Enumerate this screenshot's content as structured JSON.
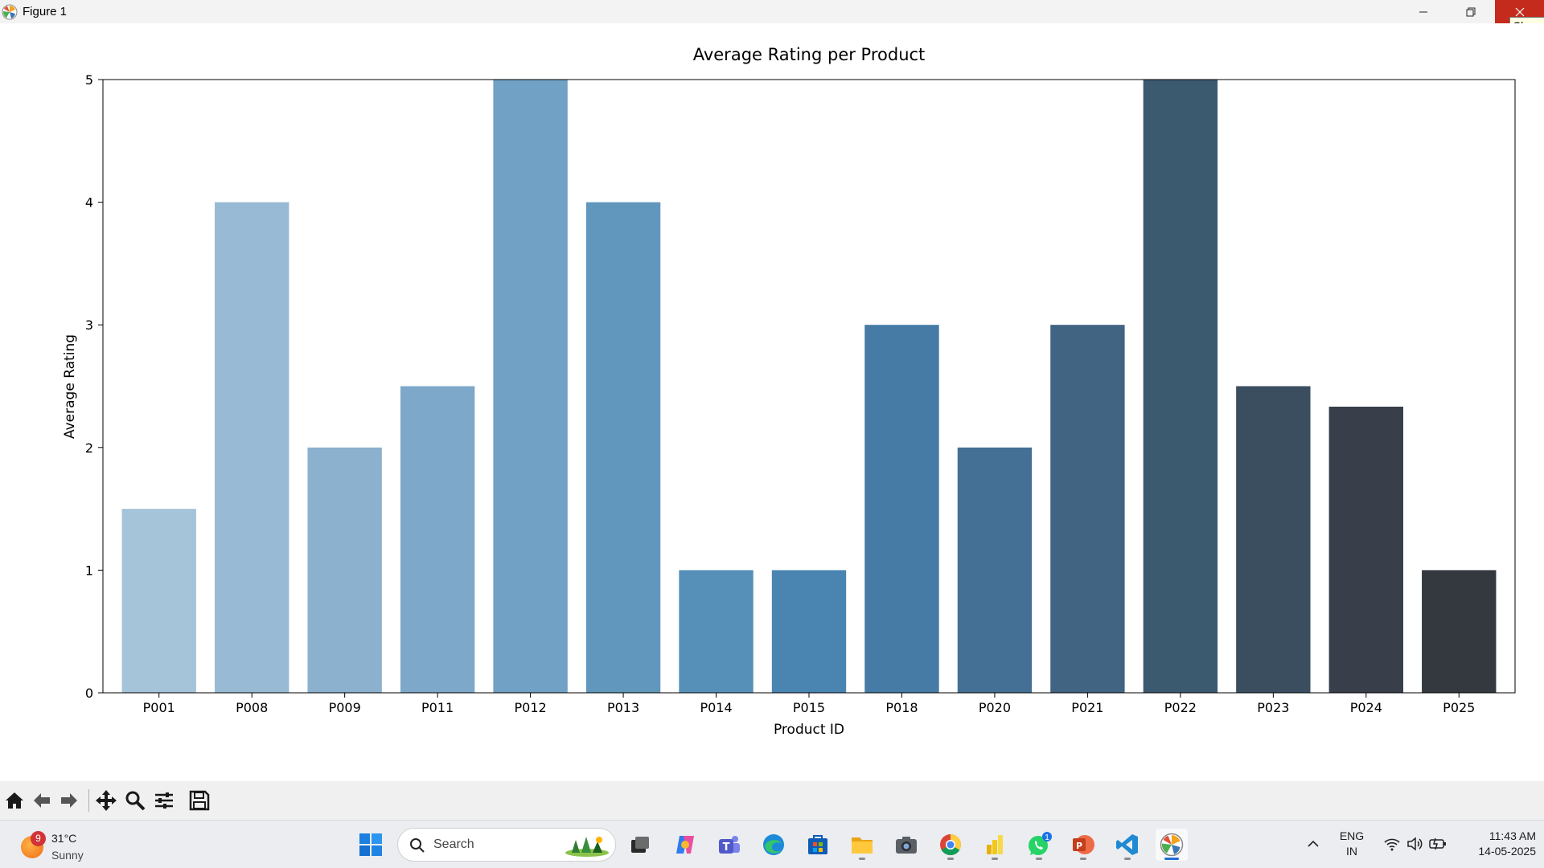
{
  "window": {
    "title": "Figure 1",
    "close_tooltip": "Close"
  },
  "chart_data": {
    "type": "bar",
    "title": "Average Rating per Product",
    "xlabel": "Product ID",
    "ylabel": "Average Rating",
    "categories": [
      "P001",
      "P008",
      "P009",
      "P011",
      "P012",
      "P013",
      "P014",
      "P015",
      "P018",
      "P020",
      "P021",
      "P022",
      "P023",
      "P024",
      "P025"
    ],
    "values": [
      1.5,
      4.0,
      2.0,
      2.5,
      5.0,
      4.0,
      1.0,
      1.0,
      3.0,
      2.0,
      3.0,
      5.0,
      2.5,
      2.333,
      1.0
    ],
    "colors": [
      "#a5c4d9",
      "#98bad4",
      "#8bb1cf",
      "#7ea8c9",
      "#71a1c4",
      "#6297bd",
      "#5690b9",
      "#4a85b2",
      "#457ba4",
      "#437094",
      "#416482",
      "#3b596f",
      "#3a4e60",
      "#383f4b",
      "#34393f"
    ],
    "ylim": [
      0,
      5
    ],
    "yticks": [
      0,
      1,
      2,
      3,
      4,
      5
    ],
    "grid": false,
    "legend": "none"
  },
  "toolbar": {
    "buttons": [
      "home-icon",
      "back-icon",
      "forward-icon",
      "pan-icon",
      "zoom-icon",
      "configure-icon",
      "save-icon"
    ]
  },
  "taskbar": {
    "weather": {
      "badge": "9",
      "temp": "31°C",
      "condition": "Sunny"
    },
    "search_placeholder": "Search",
    "apps": [
      "start",
      "search",
      "task-view",
      "copilot",
      "teams",
      "edge",
      "store",
      "file-explorer",
      "camera",
      "chrome",
      "power-bi",
      "whatsapp",
      "powerpoint",
      "vscode",
      "matplotlib"
    ],
    "whatsapp_badge": "1",
    "language": {
      "line1": "ENG",
      "line2": "IN"
    },
    "clock": {
      "time": "11:43 AM",
      "date": "14-05-2025"
    }
  }
}
